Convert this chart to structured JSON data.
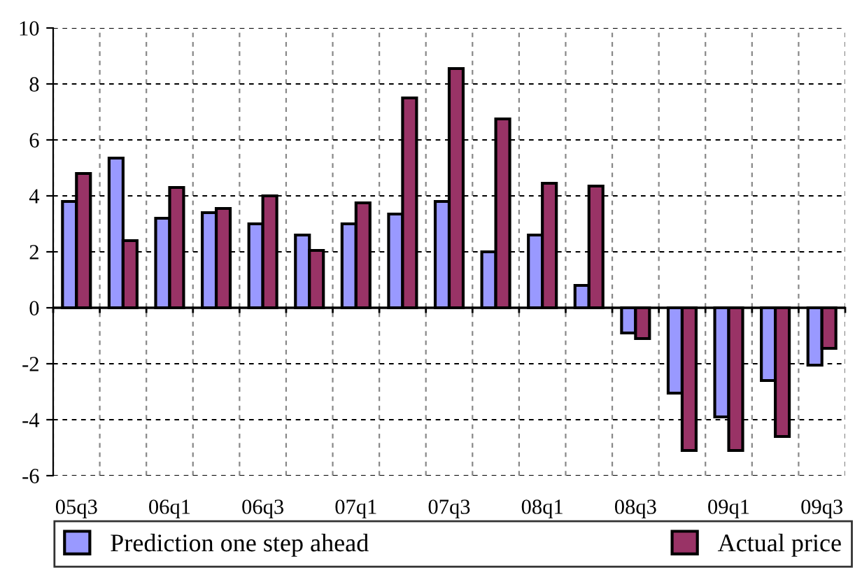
{
  "chart_data": {
    "type": "bar",
    "categories": [
      "05q3",
      null,
      "06q1",
      null,
      "06q3",
      null,
      "07q1",
      null,
      "07q3",
      null,
      "08q1",
      null,
      "08q3",
      null,
      "09q1",
      null,
      "09q3"
    ],
    "series": [
      {
        "name": "Prediction one step ahead",
        "color": "#9999ff",
        "values": [
          3.8,
          5.35,
          3.2,
          3.4,
          3.0,
          2.6,
          3.0,
          3.35,
          3.8,
          2.0,
          2.6,
          0.8,
          -0.9,
          -3.05,
          -3.9,
          -2.6,
          -2.05
        ]
      },
      {
        "name": "Actual price",
        "color": "#993366",
        "values": [
          4.8,
          2.4,
          4.3,
          3.55,
          4.0,
          2.05,
          3.75,
          7.5,
          8.55,
          6.75,
          4.45,
          4.35,
          -1.1,
          -5.1,
          -5.1,
          -4.6,
          -1.45
        ]
      }
    ],
    "ylim": [
      -6,
      10
    ],
    "yticks": [
      -6,
      -4,
      -2,
      0,
      2,
      4,
      6,
      8,
      10
    ],
    "grid": true,
    "line_style": "dashed",
    "legend": "bottom"
  }
}
